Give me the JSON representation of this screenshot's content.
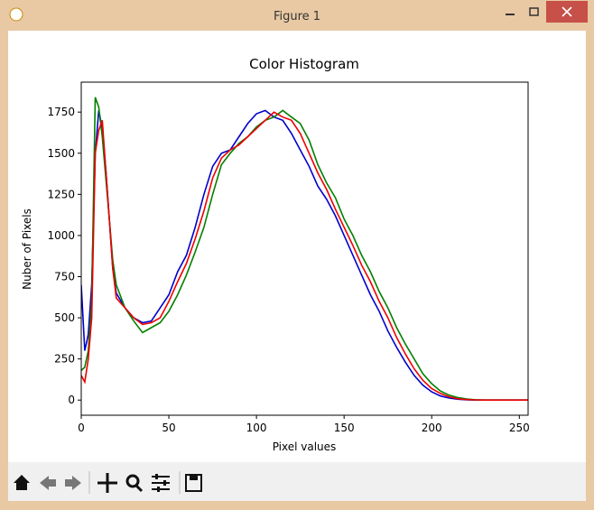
{
  "window_title": "Figure 1",
  "chart_data": {
    "type": "line",
    "title": "Color Histogram",
    "x_label": "Pixel values",
    "y_label": "Nuber of Pixels",
    "x": [
      0,
      2,
      4,
      6,
      8,
      10,
      12,
      14,
      16,
      18,
      20,
      25,
      30,
      35,
      40,
      45,
      50,
      55,
      60,
      65,
      70,
      75,
      80,
      85,
      90,
      95,
      100,
      105,
      110,
      115,
      120,
      125,
      130,
      135,
      140,
      145,
      150,
      155,
      160,
      165,
      170,
      175,
      180,
      185,
      190,
      195,
      200,
      205,
      210,
      215,
      220,
      225,
      230,
      240,
      255
    ],
    "series": [
      {
        "color": "#0000cc",
        "values": [
          700,
          300,
          400,
          700,
          1500,
          1760,
          1650,
          1400,
          1100,
          800,
          650,
          560,
          500,
          470,
          480,
          560,
          640,
          780,
          880,
          1050,
          1250,
          1420,
          1500,
          1520,
          1600,
          1680,
          1740,
          1760,
          1720,
          1700,
          1620,
          1520,
          1420,
          1300,
          1220,
          1120,
          1000,
          880,
          760,
          640,
          540,
          420,
          320,
          230,
          150,
          90,
          50,
          25,
          12,
          5,
          2,
          0,
          0,
          0,
          0
        ]
      },
      {
        "color": "#008000",
        "values": [
          180,
          200,
          300,
          600,
          1840,
          1780,
          1600,
          1350,
          1100,
          850,
          700,
          560,
          480,
          410,
          440,
          470,
          540,
          640,
          760,
          900,
          1050,
          1250,
          1430,
          1500,
          1560,
          1600,
          1660,
          1700,
          1720,
          1760,
          1720,
          1680,
          1580,
          1430,
          1320,
          1230,
          1100,
          1000,
          880,
          780,
          660,
          560,
          440,
          340,
          250,
          160,
          100,
          55,
          30,
          15,
          6,
          2,
          0,
          0,
          0
        ]
      },
      {
        "color": "#ee0000",
        "values": [
          150,
          110,
          250,
          500,
          1500,
          1640,
          1700,
          1400,
          1100,
          800,
          620,
          560,
          500,
          460,
          470,
          500,
          600,
          720,
          830,
          980,
          1150,
          1350,
          1470,
          1520,
          1550,
          1600,
          1650,
          1700,
          1750,
          1720,
          1700,
          1620,
          1500,
          1380,
          1280,
          1160,
          1050,
          940,
          820,
          720,
          600,
          500,
          380,
          280,
          190,
          120,
          70,
          40,
          20,
          8,
          3,
          1,
          0,
          0,
          0
        ]
      }
    ],
    "xlim": [
      0,
      255
    ],
    "ylim": [
      -92,
      1932
    ],
    "xticks": [
      0,
      50,
      100,
      150,
      200,
      250
    ],
    "yticks": [
      0,
      250,
      500,
      750,
      1000,
      1250,
      1500,
      1750
    ]
  }
}
